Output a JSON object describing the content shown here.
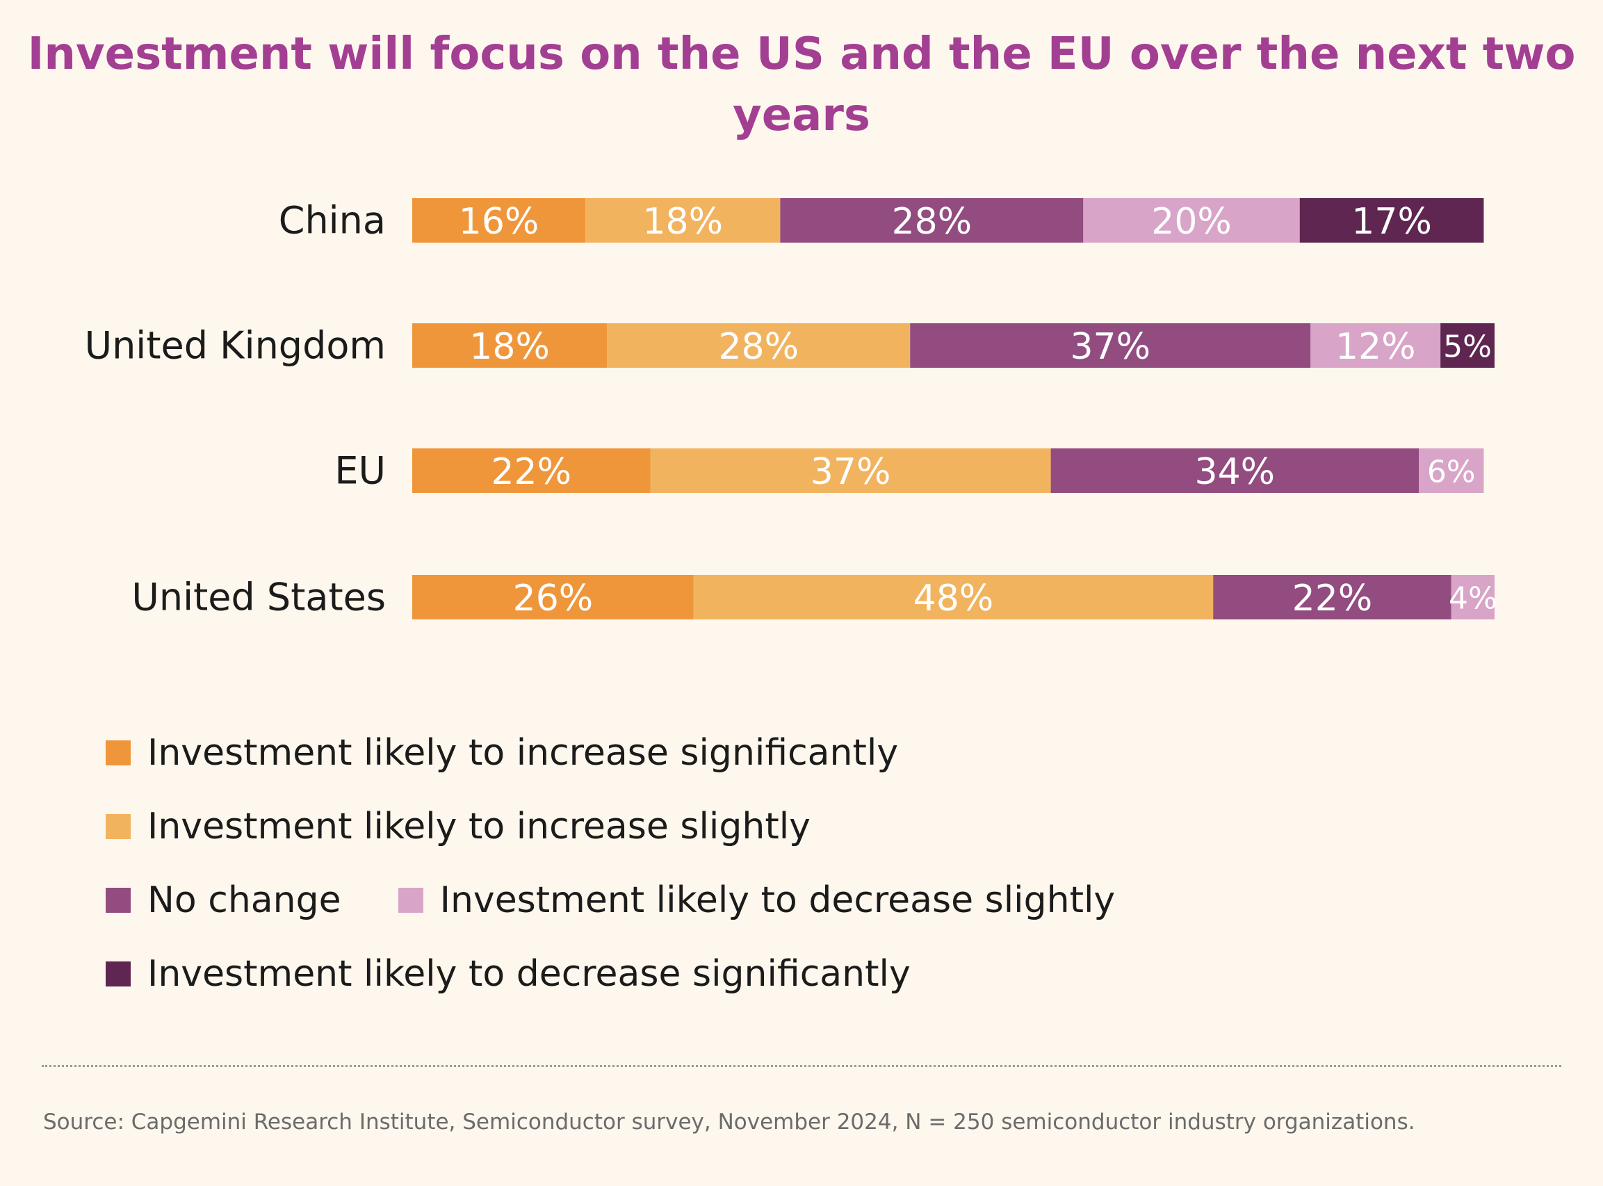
{
  "colors": {
    "background": "#fdf7ed",
    "title": "#a33f92",
    "increase_significantly": "#ef963b",
    "increase_slightly": "#f2b35f",
    "no_change": "#924c7f",
    "decrease_slightly": "#d8a4c7",
    "decrease_significantly": "#5e2650"
  },
  "source": "Source: Capgemini Research Institute, Semiconductor survey, November 2024, N = 250 semiconductor industry organizations.",
  "chart_data": {
    "type": "bar",
    "orientation": "horizontal",
    "stacked": true,
    "title": "Investment will focus on the US and the EU over the next two years",
    "categories": [
      "China",
      "United Kingdom",
      "EU",
      "United States"
    ],
    "series": [
      {
        "name": "Investment likely to increase significantly",
        "color": "#ef963b",
        "values": [
          16,
          18,
          22,
          26
        ]
      },
      {
        "name": "Investment likely to increase slightly",
        "color": "#f2b35f",
        "values": [
          18,
          28,
          37,
          48
        ]
      },
      {
        "name": "No change",
        "color": "#924c7f",
        "values": [
          28,
          37,
          34,
          22
        ]
      },
      {
        "name": "Investment likely to decrease slightly",
        "color": "#d8a4c7",
        "values": [
          20,
          12,
          6,
          4
        ]
      },
      {
        "name": "Investment likely to decrease significantly",
        "color": "#5e2650",
        "values": [
          17,
          5,
          0,
          0
        ]
      }
    ],
    "value_format": "percent",
    "grid": false,
    "legend_position": "bottom-left"
  }
}
